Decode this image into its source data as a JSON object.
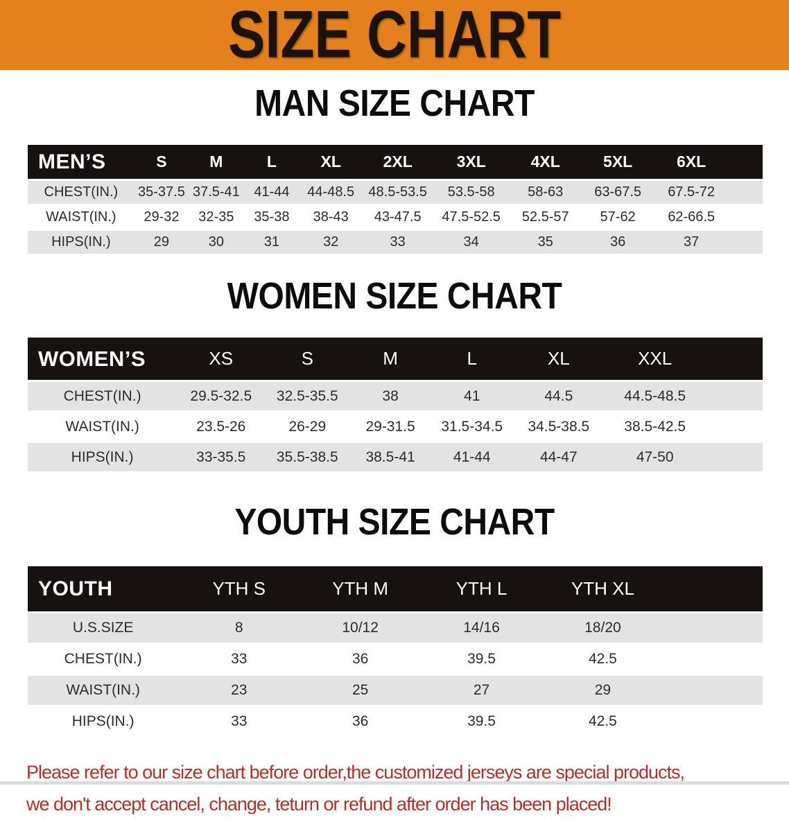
{
  "banner": {
    "title": "SIZE CHART"
  },
  "colors": {
    "banner_orange": "#e5811d",
    "header_black": "#171210",
    "row_gray": "#e3e3e3",
    "note_red": "#b2302a"
  },
  "men": {
    "section_title": "MAN SIZE CHART",
    "table": {
      "label": "MEN’S",
      "columns": [
        "S",
        "M",
        "L",
        "XL",
        "2XL",
        "3XL",
        "4XL",
        "5XL",
        "6XL"
      ],
      "rows": [
        {
          "label": "CHEST(IN.)",
          "values": [
            "35-37.5",
            "37.5-41",
            "41-44",
            "44-48.5",
            "48.5-53.5",
            "53.5-58",
            "58-63",
            "63-67.5",
            "67.5-72"
          ]
        },
        {
          "label": "WAIST(IN.)",
          "values": [
            "29-32",
            "32-35",
            "35-38",
            "38-43",
            "43-47.5",
            "47.5-52.5",
            "52.5-57",
            "57-62",
            "62-66.5"
          ]
        },
        {
          "label": "HIPS(IN.)",
          "values": [
            "29",
            "30",
            "31",
            "32",
            "33",
            "34",
            "35",
            "36",
            "37"
          ]
        }
      ]
    }
  },
  "women": {
    "section_title": "WOMEN SIZE CHART",
    "table": {
      "label": "WOMEN’S",
      "columns": [
        "XS",
        "S",
        "M",
        "L",
        "XL",
        "XXL"
      ],
      "rows": [
        {
          "label": "CHEST(IN.)",
          "values": [
            "29.5-32.5",
            "32.5-35.5",
            "38",
            "41",
            "44.5",
            "44.5-48.5"
          ]
        },
        {
          "label": "WAIST(IN.)",
          "values": [
            "23.5-26",
            "26-29",
            "29-31.5",
            "31.5-34.5",
            "34.5-38.5",
            "38.5-42.5"
          ]
        },
        {
          "label": "HIPS(IN.)",
          "values": [
            "33-35.5",
            "35.5-38.5",
            "38.5-41",
            "41-44",
            "44-47",
            "47-50"
          ]
        }
      ]
    }
  },
  "youth": {
    "section_title": "YOUTH SIZE CHART",
    "table": {
      "label": "YOUTH",
      "columns": [
        "YTH S",
        "YTH M",
        "YTH L",
        "YTH XL"
      ],
      "rows": [
        {
          "label": "U.S.SIZE",
          "values": [
            "8",
            "10/12",
            "14/16",
            "18/20"
          ]
        },
        {
          "label": "CHEST(IN.)",
          "values": [
            "33",
            "36",
            "39.5",
            "42.5"
          ]
        },
        {
          "label": "WAIST(IN.)",
          "values": [
            "23",
            "25",
            "27",
            "29"
          ]
        },
        {
          "label": "HIPS(IN.)",
          "values": [
            "33",
            "36",
            "39.5",
            "42.5"
          ]
        }
      ]
    }
  },
  "footer": {
    "line1": "Please refer to our size chart before order,the customized jerseys are special products,",
    "line2": "we don't accept cancel, change, teturn or refund after order has been placed!"
  }
}
